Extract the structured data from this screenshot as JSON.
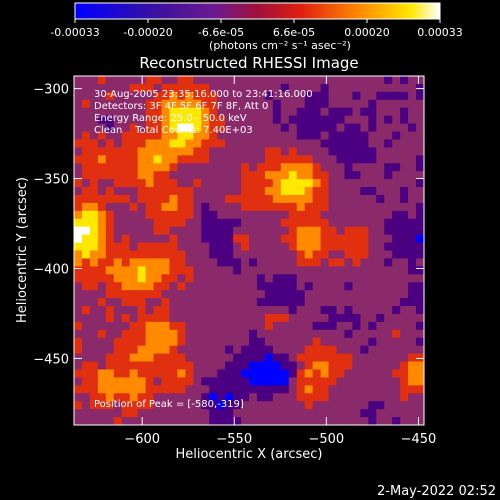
{
  "colorbar": {
    "ticks": [
      "-0.00033",
      "-0.00020",
      "-6.6e-05",
      "6.6e-05",
      "0.00020",
      "0.00033"
    ],
    "units": "(photons cm⁻² s⁻¹ asec⁻²)"
  },
  "chart_data": {
    "type": "heatmap",
    "title": "Reconstructed RHESSI Image",
    "xlabel": "Heliocentric X (arcsec)",
    "ylabel": "Heliocentric Y (arcsec)",
    "xlim": [
      -637,
      -447
    ],
    "ylim": [
      -487,
      -293
    ],
    "x_ticks": [
      -600,
      -550,
      -500,
      -450
    ],
    "y_ticks": [
      -300,
      -350,
      -400,
      -450
    ],
    "x_tick_labels": [
      "−600",
      "−550",
      "−500",
      "−450"
    ],
    "y_tick_labels": [
      "−300",
      "−350",
      "−400",
      "−450"
    ],
    "colorbar_range": [
      -0.00033,
      0.00033
    ],
    "colormap": [
      "#0000ff",
      "#4a0080",
      "#8a2a6a",
      "#e03010",
      "#ff8a00",
      "#ffe800",
      "#ffffff"
    ],
    "annotations": [
      "30-Aug-2005 23:35:16.000 to 23:41:16.000",
      "Detectors: 3F 4F 5F 6F 7F 8F, Att 0",
      "Energy Range: 25.0 - 50.0 keV",
      "Clean    Total Counts: 7.40E+03"
    ],
    "peak_label": "Position of Peak = [-580,-319]",
    "peak": [
      -580,
      -319
    ]
  },
  "footer": {
    "timestamp": "2-May-2022 02:52"
  }
}
